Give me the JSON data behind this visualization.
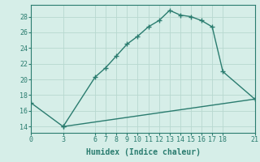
{
  "xlabel": "Humidex (Indice chaleur)",
  "background_color": "#d6eee8",
  "line_color": "#2a7c6f",
  "grid_color": "#b8d8d0",
  "x_ticks": [
    0,
    3,
    6,
    7,
    8,
    9,
    10,
    11,
    12,
    13,
    14,
    15,
    16,
    17,
    18,
    21
  ],
  "y_ticks": [
    14,
    16,
    18,
    20,
    22,
    24,
    26,
    28
  ],
  "xlim": [
    0,
    21
  ],
  "ylim": [
    13.2,
    29.5
  ],
  "curve1_x": [
    0,
    3,
    6,
    7,
    8,
    9,
    10,
    11,
    12,
    13,
    14,
    15,
    16,
    17,
    18,
    21
  ],
  "curve1_y": [
    17.0,
    14.0,
    20.3,
    21.5,
    23.0,
    24.5,
    25.5,
    26.7,
    27.5,
    28.8,
    28.2,
    28.0,
    27.5,
    26.7,
    21.0,
    17.5
  ],
  "curve2_x": [
    3,
    21
  ],
  "curve2_y": [
    14.0,
    17.5
  ],
  "marker": "+",
  "marker_size": 4,
  "marker_lw": 1.0,
  "line_width": 1.0,
  "tick_fontsize": 6,
  "label_fontsize": 7
}
